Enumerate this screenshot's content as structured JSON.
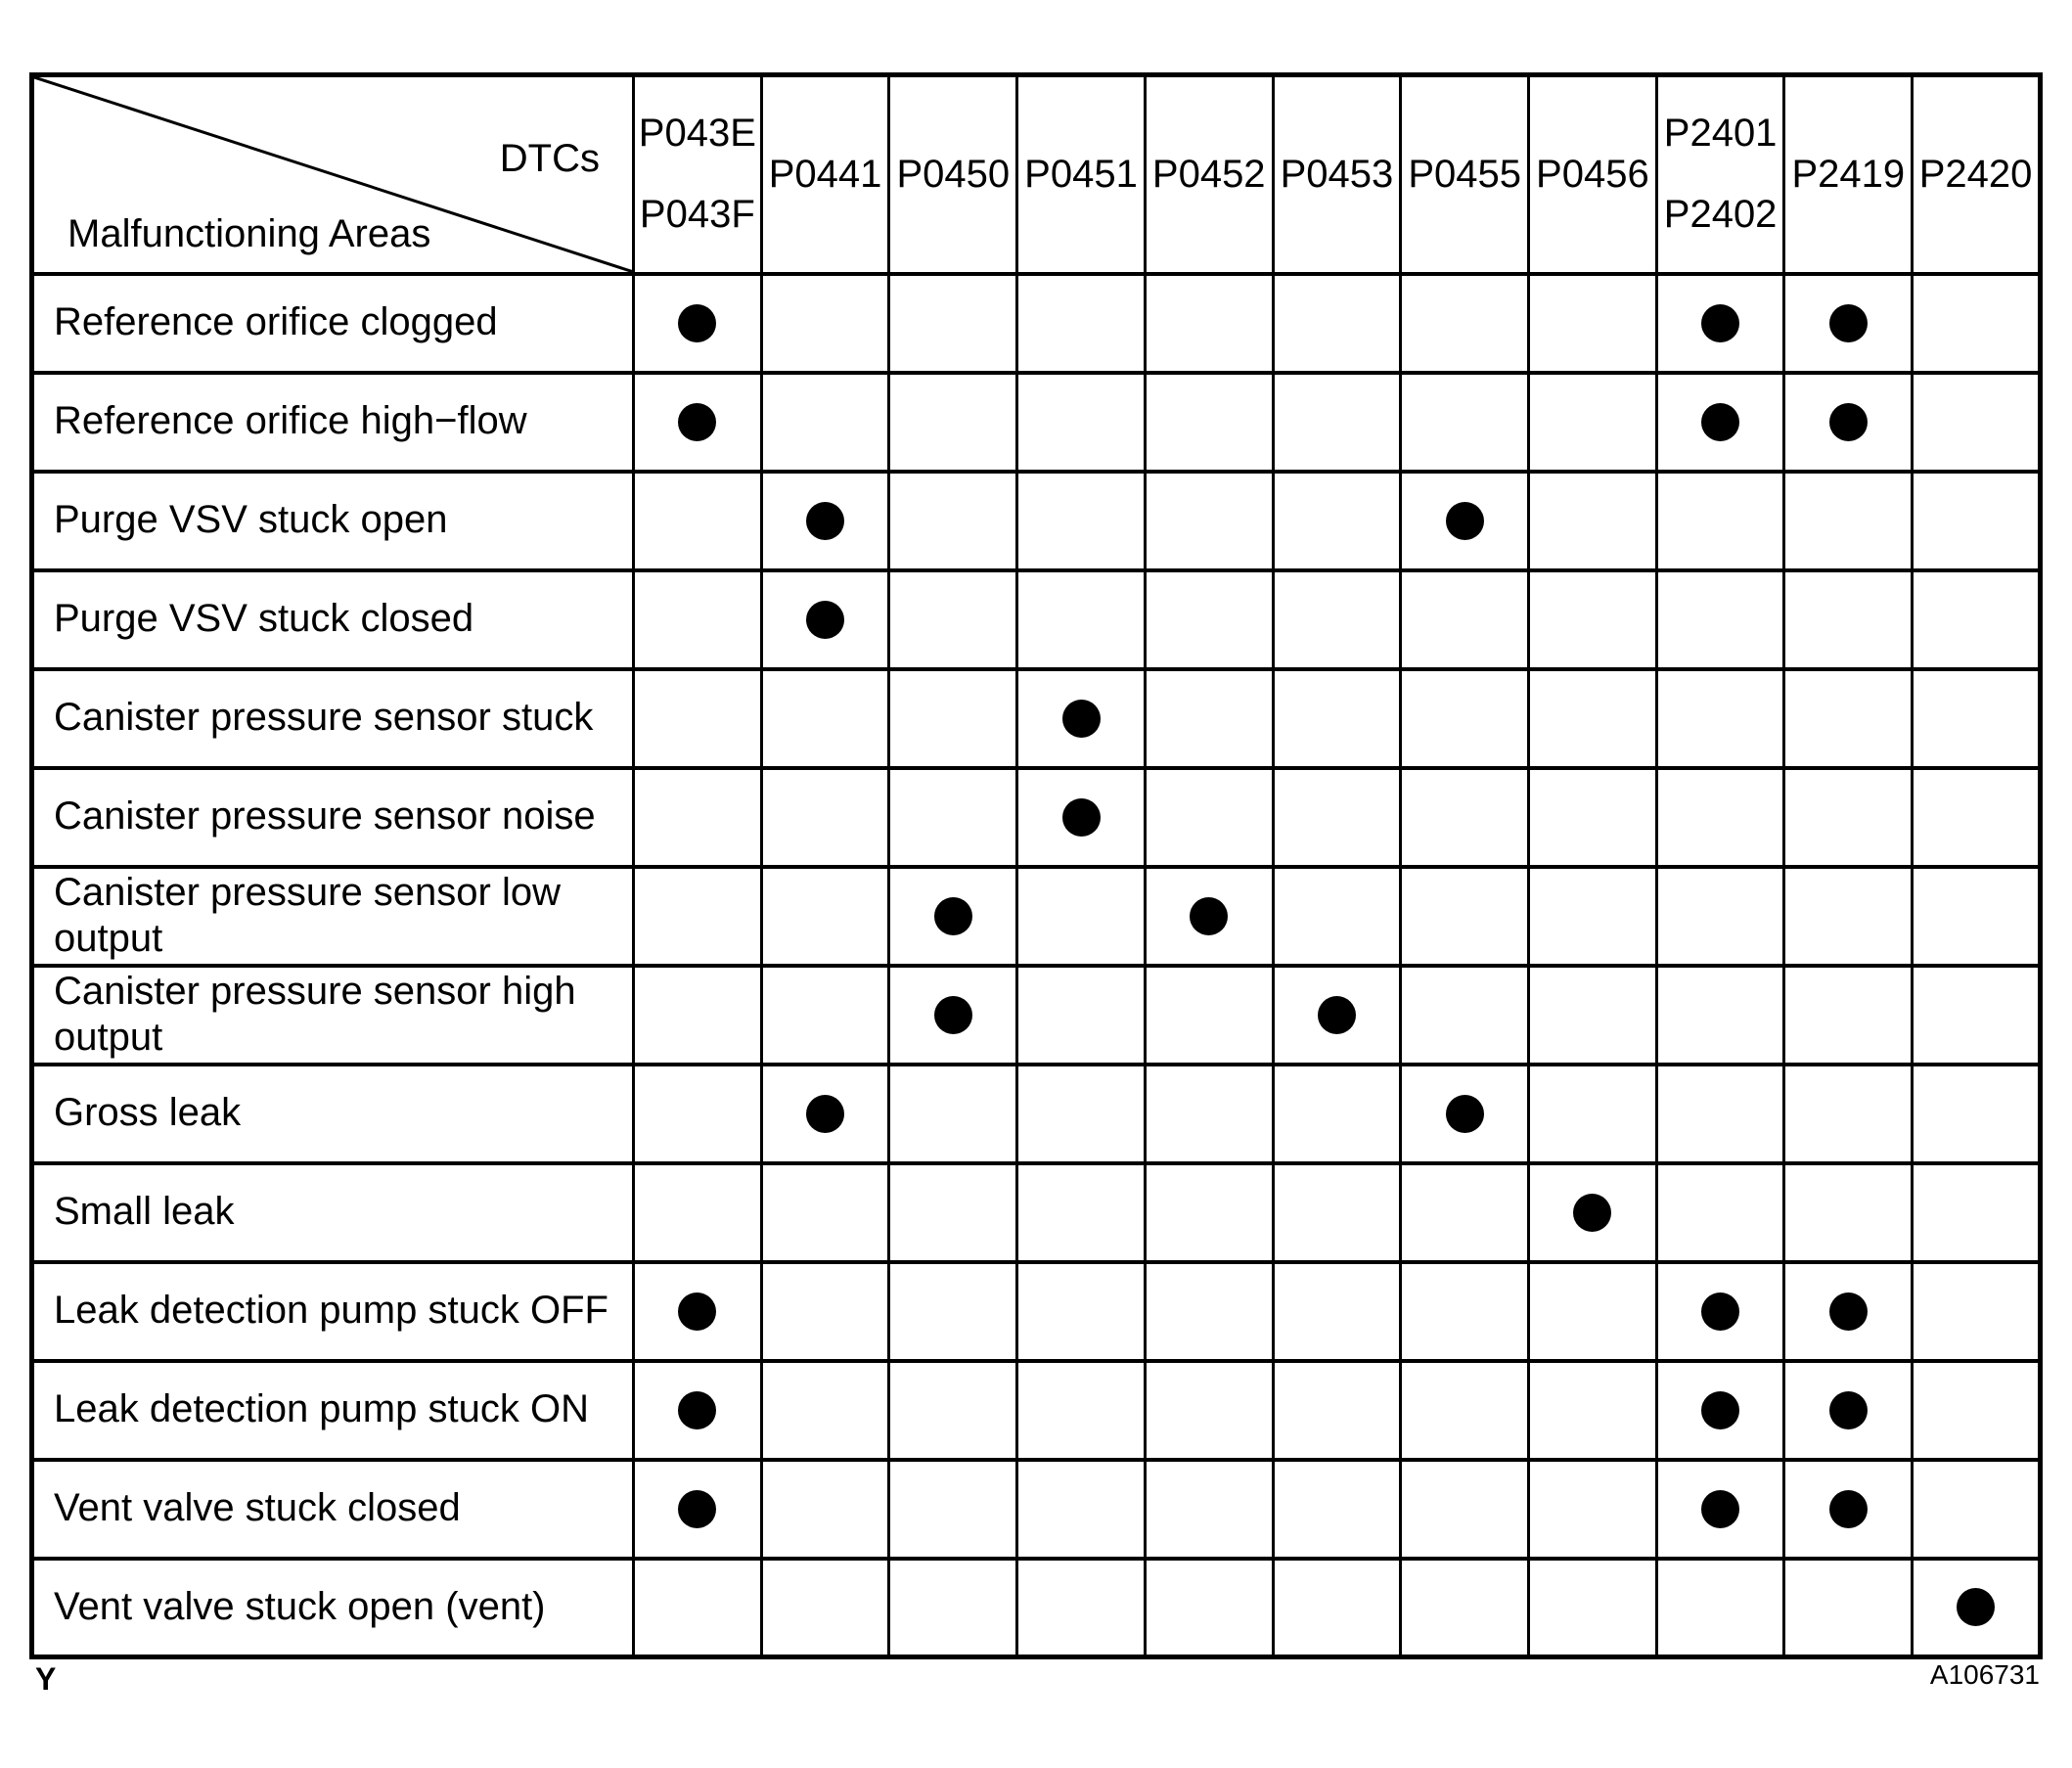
{
  "page_label": "Y",
  "figure_id": "A106731",
  "colors": {
    "ink": "#000000",
    "background": "#ffffff"
  },
  "table": {
    "corner": {
      "top_right": "DTCs",
      "bottom_left": "Malfunctioning Areas"
    },
    "columns": [
      [
        "P043E",
        "P043F"
      ],
      [
        "P0441"
      ],
      [
        "P0450"
      ],
      [
        "P0451"
      ],
      [
        "P0452"
      ],
      [
        "P0453"
      ],
      [
        "P0455"
      ],
      [
        "P0456"
      ],
      [
        "P2401",
        "P2402"
      ],
      [
        "P2419"
      ],
      [
        "P2420"
      ]
    ],
    "rows": [
      {
        "label": "Reference orifice clogged",
        "dots": [
          0,
          8,
          9
        ]
      },
      {
        "label": "Reference orifice high−flow",
        "dots": [
          0,
          8,
          9
        ]
      },
      {
        "label": "Purge VSV stuck open",
        "dots": [
          1,
          6
        ]
      },
      {
        "label": "Purge VSV stuck closed",
        "dots": [
          1
        ]
      },
      {
        "label": "Canister pressure sensor stuck",
        "dots": [
          3
        ]
      },
      {
        "label": "Canister pressure sensor noise",
        "dots": [
          3
        ]
      },
      {
        "label": "Canister pressure sensor low output",
        "dots": [
          2,
          4
        ]
      },
      {
        "label": "Canister pressure sensor high output",
        "dots": [
          2,
          5
        ]
      },
      {
        "label": "Gross leak",
        "dots": [
          1,
          6
        ]
      },
      {
        "label": "Small leak",
        "dots": [
          7
        ]
      },
      {
        "label": "Leak detection pump stuck OFF",
        "dots": [
          0,
          8,
          9
        ]
      },
      {
        "label": "Leak detection pump stuck ON",
        "dots": [
          0,
          8,
          9
        ]
      },
      {
        "label": "Vent valve stuck closed",
        "dots": [
          0,
          8,
          9
        ]
      },
      {
        "label": "Vent valve stuck open (vent)",
        "dots": [
          10
        ]
      }
    ]
  }
}
